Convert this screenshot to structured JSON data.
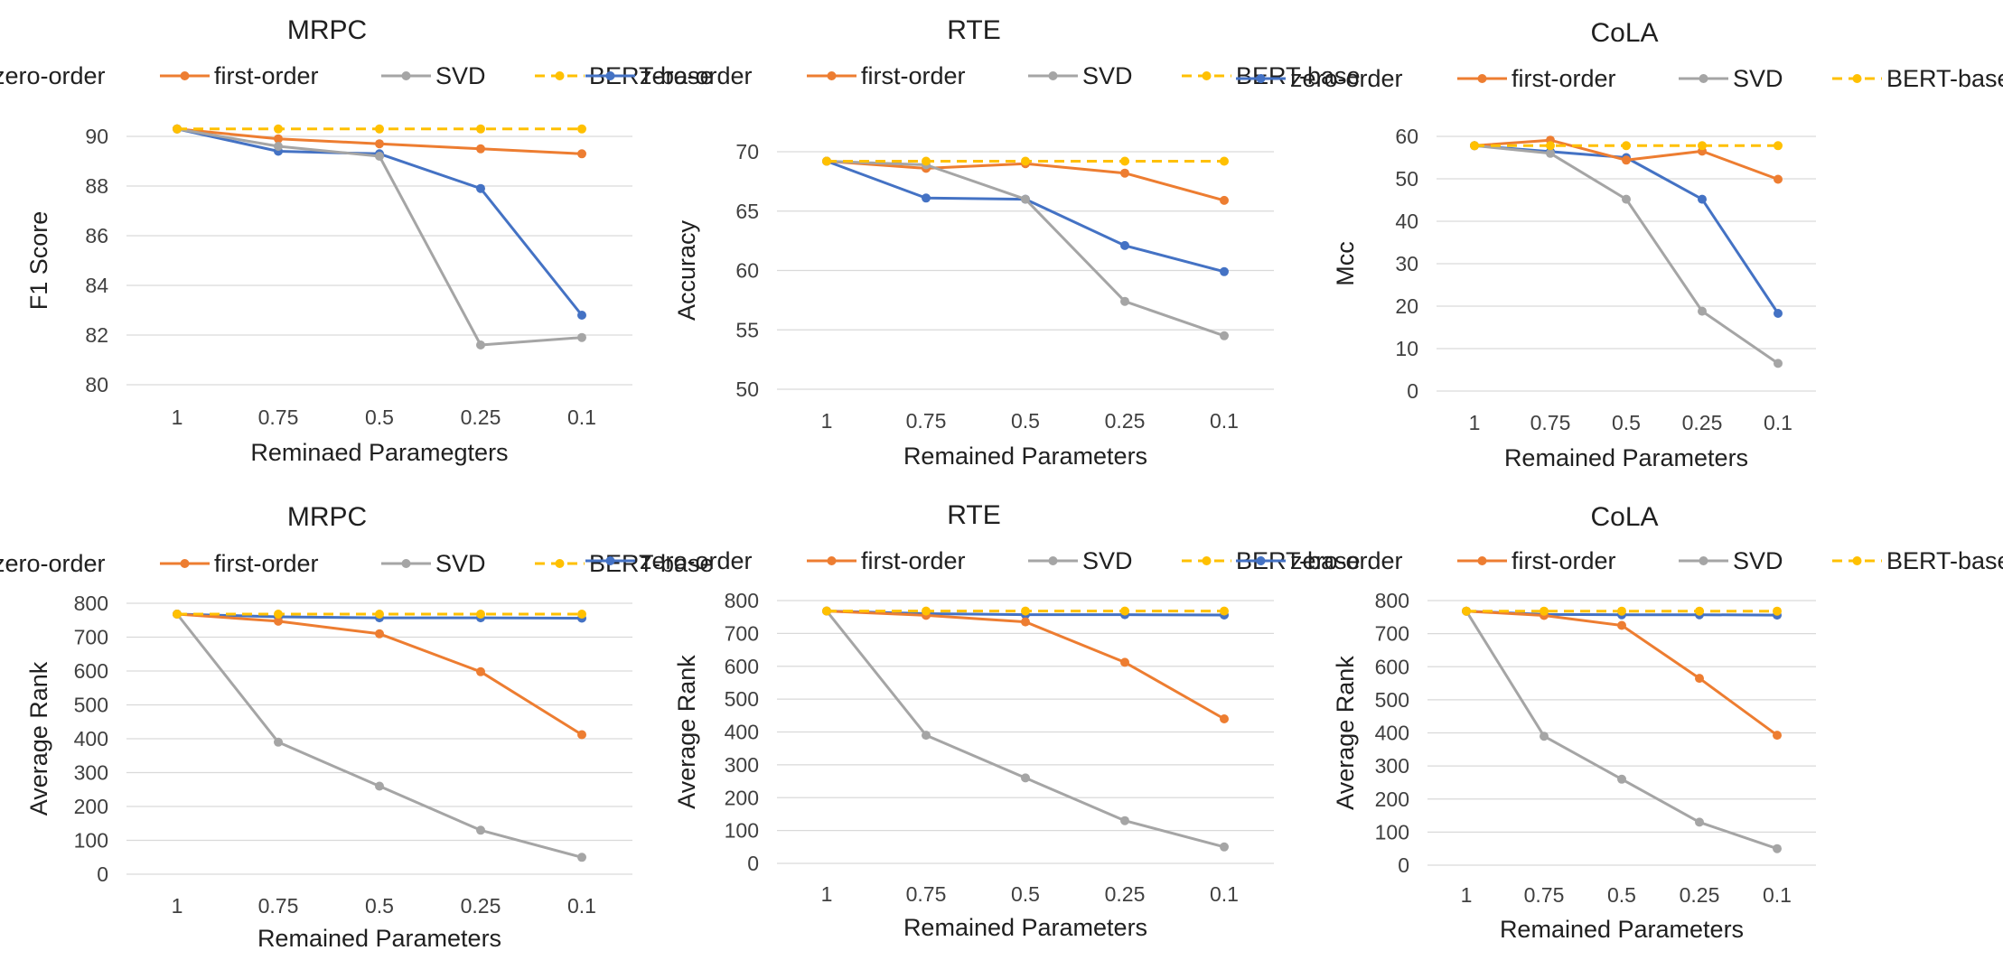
{
  "colors": {
    "zero-order": "#4472c4",
    "first-order": "#ed7d31",
    "SVD": "#a5a5a5",
    "BERT-base": "#ffc000"
  },
  "chart_data": [
    {
      "type": "line",
      "title": "MRPC",
      "categories": [
        "1",
        "0.75",
        "0.5",
        "0.25",
        "0.1"
      ],
      "xlabel": "Reminaed Paramegters",
      "ylabel": "F1 Score",
      "ylim": [
        80,
        90
      ],
      "yticks": [
        80,
        82,
        84,
        86,
        88,
        90
      ],
      "series": [
        {
          "name": "zero-order",
          "values": [
            90.3,
            89.4,
            89.3,
            87.9,
            82.8
          ]
        },
        {
          "name": "first-order",
          "values": [
            90.3,
            89.9,
            89.7,
            89.5,
            89.3
          ]
        },
        {
          "name": "SVD",
          "values": [
            90.3,
            89.6,
            89.2,
            81.6,
            81.9
          ]
        },
        {
          "name": "BERT-base",
          "values": [
            90.3,
            90.3,
            90.3,
            90.3,
            90.3
          ],
          "dashed": true
        }
      ]
    },
    {
      "type": "line",
      "title": "RTE",
      "categories": [
        "1",
        "0.75",
        "0.5",
        "0.25",
        "0.1"
      ],
      "xlabel": "Remained Parameters",
      "ylabel": "Accuracy",
      "ylim": [
        50,
        70
      ],
      "yticks": [
        50,
        55,
        60,
        65,
        70
      ],
      "series": [
        {
          "name": "zero-order",
          "values": [
            69.2,
            66.1,
            66.0,
            62.1,
            59.9
          ]
        },
        {
          "name": "first-order",
          "values": [
            69.2,
            68.6,
            69.0,
            68.2,
            65.9
          ]
        },
        {
          "name": "SVD",
          "values": [
            69.2,
            68.9,
            66.0,
            57.4,
            54.5
          ]
        },
        {
          "name": "BERT-base",
          "values": [
            69.2,
            69.2,
            69.2,
            69.2,
            69.2
          ],
          "dashed": true
        }
      ]
    },
    {
      "type": "line",
      "title": "CoLA",
      "categories": [
        "1",
        "0.75",
        "0.5",
        "0.25",
        "0.1"
      ],
      "xlabel": "Remained Parameters",
      "ylabel": "Mcc",
      "ylim": [
        0,
        60
      ],
      "yticks": [
        0,
        10,
        20,
        30,
        40,
        50,
        60
      ],
      "series": [
        {
          "name": "zero-order",
          "values": [
            57.8,
            56.4,
            55.0,
            45.2,
            18.3
          ]
        },
        {
          "name": "first-order",
          "values": [
            57.8,
            59.1,
            54.4,
            56.5,
            49.9
          ]
        },
        {
          "name": "SVD",
          "values": [
            57.8,
            56.0,
            45.2,
            18.8,
            6.5
          ]
        },
        {
          "name": "BERT-base",
          "values": [
            57.8,
            57.8,
            57.8,
            57.8,
            57.8
          ],
          "dashed": true
        }
      ]
    },
    {
      "type": "line",
      "title": "MRPC",
      "categories": [
        "1",
        "0.75",
        "0.5",
        "0.25",
        "0.1"
      ],
      "xlabel": "Remained Parameters",
      "ylabel": "Average Rank",
      "ylim": [
        0,
        800
      ],
      "yticks": [
        0,
        100,
        200,
        300,
        400,
        500,
        600,
        700,
        800
      ],
      "series": [
        {
          "name": "zero-order",
          "values": [
            768,
            760,
            757,
            757,
            756
          ]
        },
        {
          "name": "first-order",
          "values": [
            768,
            747,
            710,
            598,
            412
          ]
        },
        {
          "name": "SVD",
          "values": [
            768,
            390,
            260,
            130,
            50
          ]
        },
        {
          "name": "BERT-base",
          "values": [
            768,
            768,
            768,
            768,
            768
          ],
          "dashed": true
        }
      ]
    },
    {
      "type": "line",
      "title": "RTE",
      "categories": [
        "1",
        "0.75",
        "0.5",
        "0.25",
        "0.1"
      ],
      "xlabel": "Remained Parameters",
      "ylabel": "Average Rank",
      "ylim": [
        0,
        800
      ],
      "yticks": [
        0,
        100,
        200,
        300,
        400,
        500,
        600,
        700,
        800
      ],
      "series": [
        {
          "name": "zero-order",
          "values": [
            768,
            760,
            757,
            757,
            756
          ]
        },
        {
          "name": "first-order",
          "values": [
            768,
            755,
            735,
            612,
            440
          ]
        },
        {
          "name": "SVD",
          "values": [
            768,
            390,
            260,
            130,
            50
          ]
        },
        {
          "name": "BERT-base",
          "values": [
            768,
            768,
            768,
            768,
            768
          ],
          "dashed": true
        }
      ]
    },
    {
      "type": "line",
      "title": "CoLA",
      "categories": [
        "1",
        "0.75",
        "0.5",
        "0.25",
        "0.1"
      ],
      "xlabel": "Remained Parameters",
      "ylabel": "Average Rank",
      "ylim": [
        0,
        800
      ],
      "yticks": [
        0,
        100,
        200,
        300,
        400,
        500,
        600,
        700,
        800
      ],
      "series": [
        {
          "name": "zero-order",
          "values": [
            768,
            758,
            757,
            757,
            756
          ]
        },
        {
          "name": "first-order",
          "values": [
            768,
            755,
            725,
            565,
            393
          ]
        },
        {
          "name": "SVD",
          "values": [
            768,
            390,
            260,
            130,
            50
          ]
        },
        {
          "name": "BERT-base",
          "values": [
            768,
            768,
            768,
            768,
            768
          ],
          "dashed": true
        }
      ]
    }
  ]
}
